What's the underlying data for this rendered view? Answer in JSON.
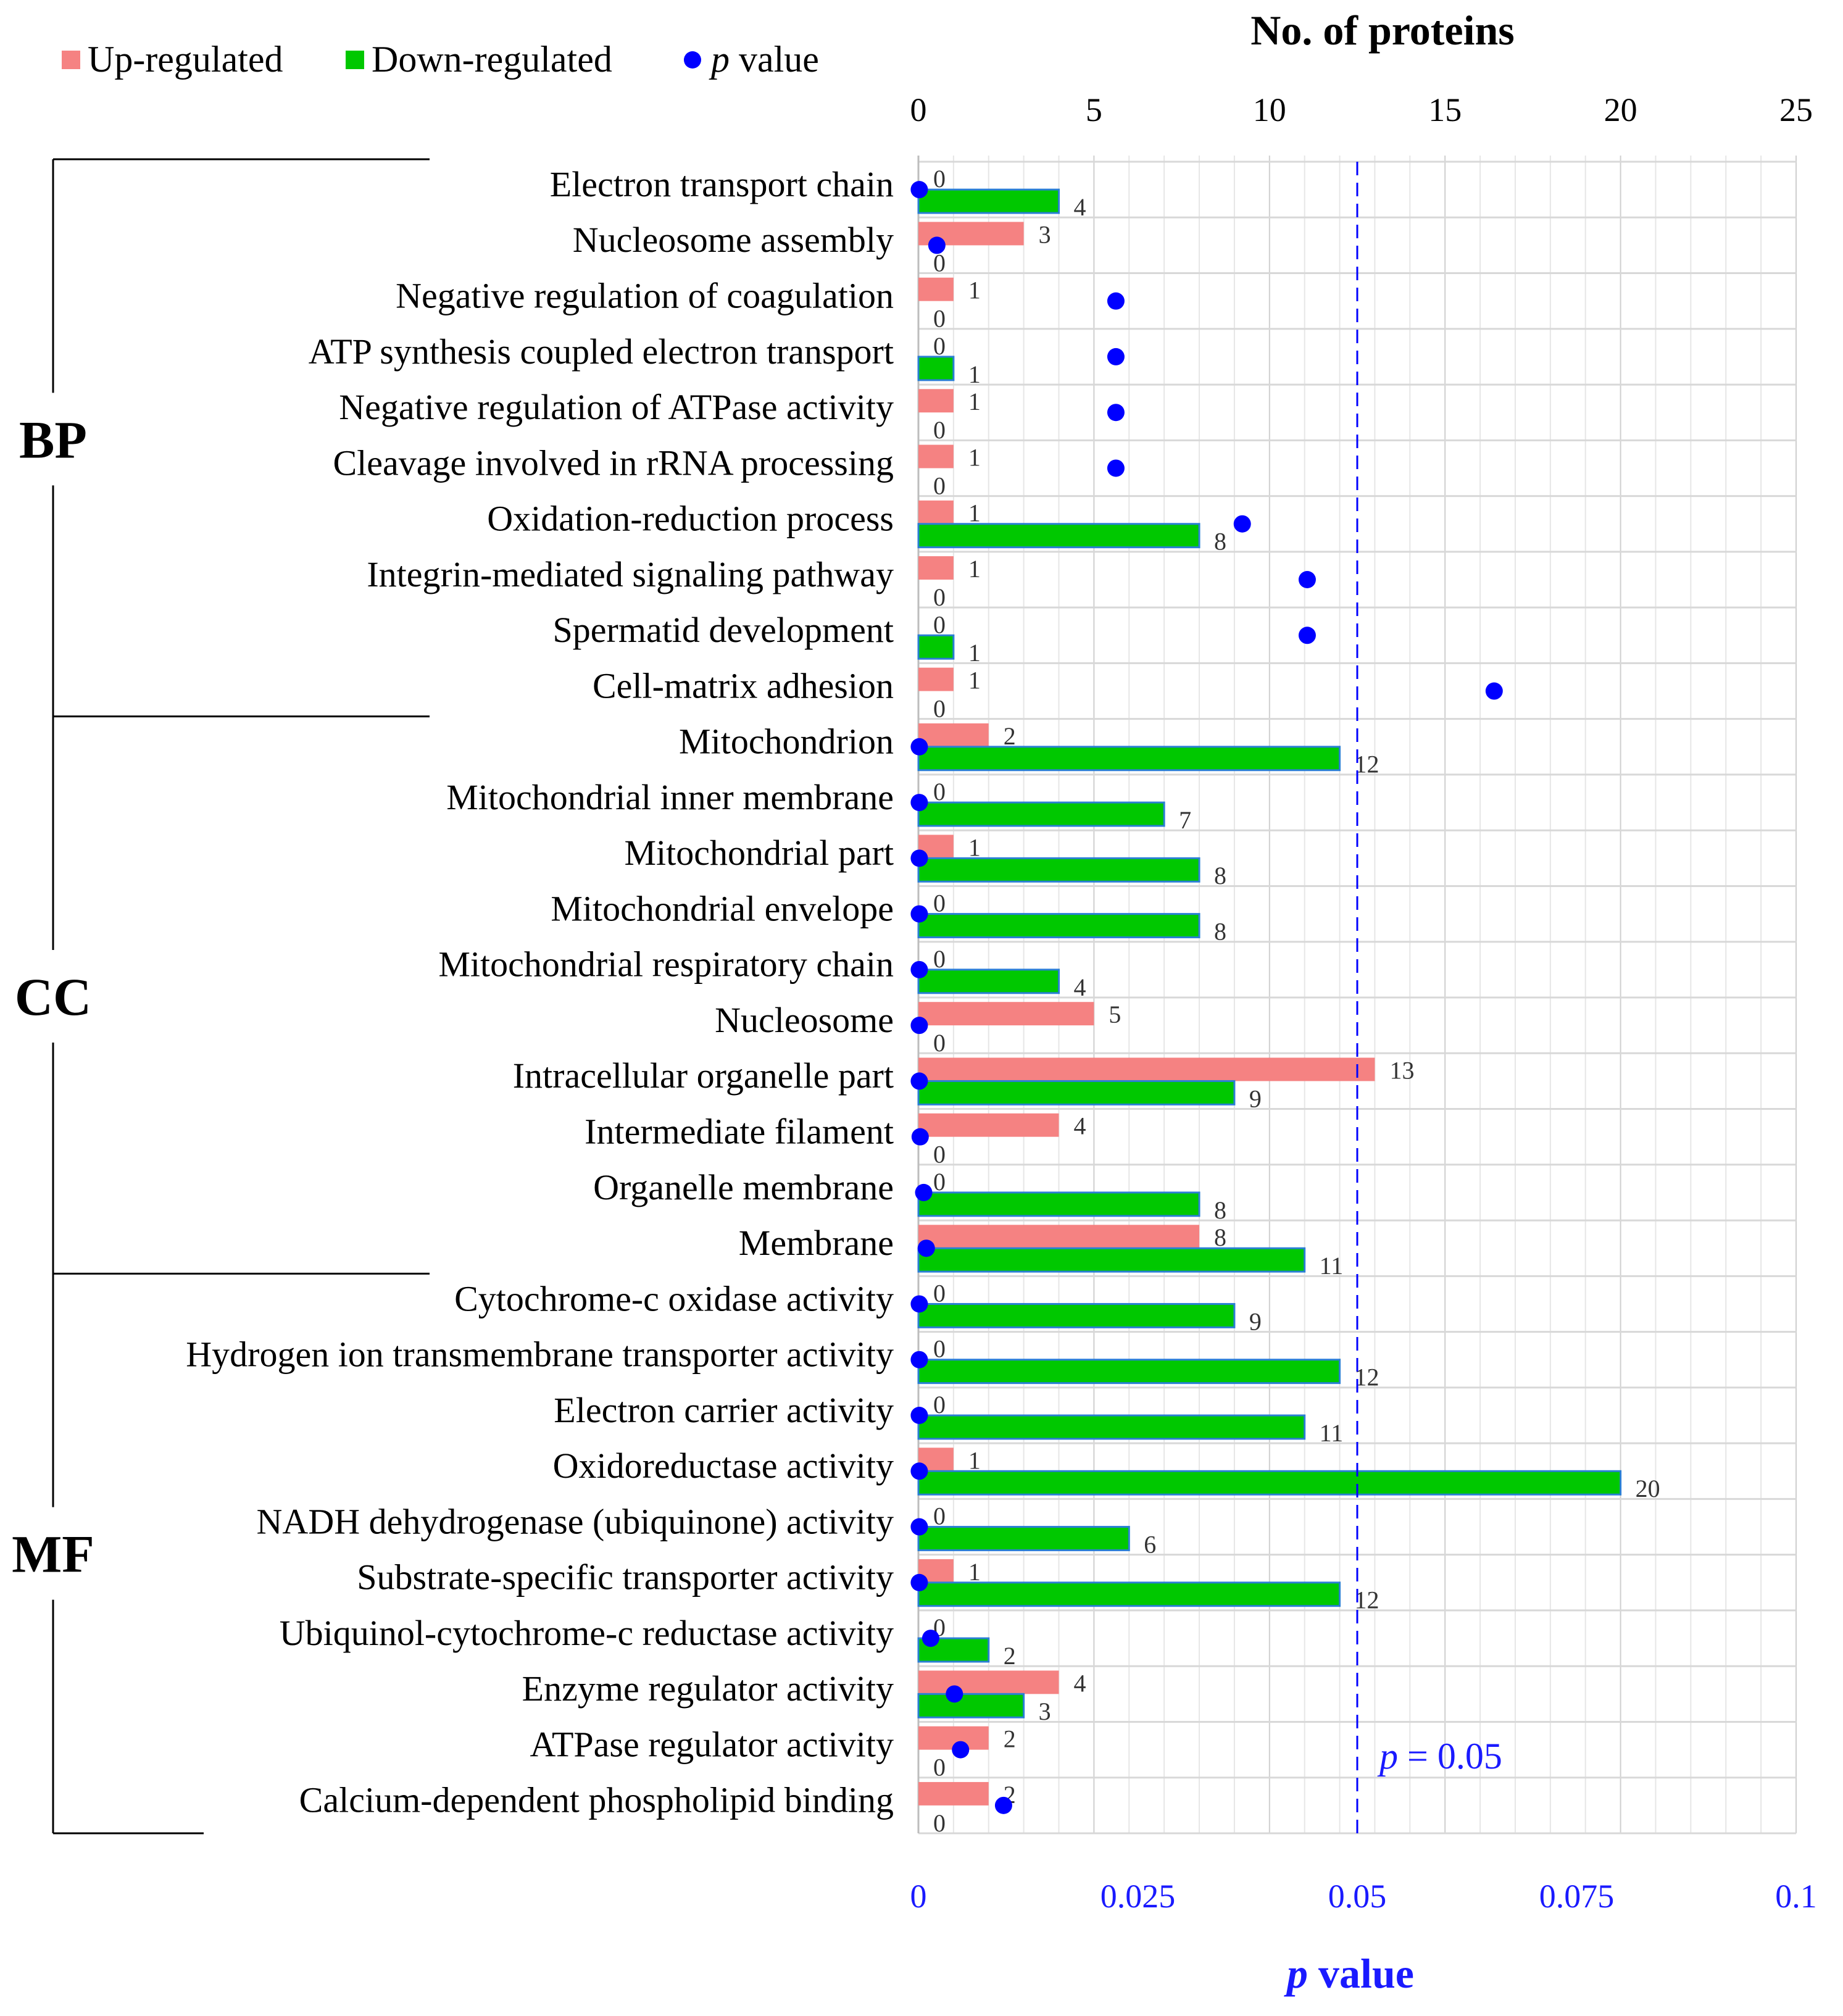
{
  "chart_data": {
    "type": "bar",
    "orientation": "horizontal",
    "top_axis_title": "No. of proteins",
    "top_axis_ticks": [
      "0",
      "5",
      "10",
      "15",
      "20",
      "25"
    ],
    "top_axis_range": [
      0,
      25
    ],
    "bottom_axis_title_italic": "p",
    "bottom_axis_title_rest": " value",
    "bottom_axis_ticks": [
      "0",
      "0.025",
      "0.05",
      "0.075",
      "0.1"
    ],
    "bottom_axis_range": [
      0,
      0.1
    ],
    "threshold": {
      "value": 0.05,
      "label_italic": "p",
      "label_rest": " = 0.05"
    },
    "legend": {
      "up": {
        "label": "Up-regulated",
        "color": "#f58282"
      },
      "down": {
        "label": "Down-regulated",
        "color": "#00c800"
      },
      "p": {
        "label_italic": "p",
        "label_rest": " value",
        "color": "#0000ff"
      }
    },
    "groups": [
      {
        "name": "BP",
        "start": 0,
        "end": 9
      },
      {
        "name": "CC",
        "start": 10,
        "end": 19
      },
      {
        "name": "MF",
        "start": 20,
        "end": 29
      }
    ],
    "categories": [
      "Electron transport chain",
      "Nucleosome assembly",
      "Negative regulation of coagulation",
      "ATP synthesis coupled electron transport",
      "Negative regulation of ATPase activity",
      "Cleavage involved in rRNA processing",
      "Oxidation-reduction process",
      "Integrin-mediated signaling pathway",
      "Spermatid development",
      "Cell-matrix adhesion",
      "Mitochondrion",
      "Mitochondrial inner membrane",
      "Mitochondrial part",
      "Mitochondrial envelope",
      "Mitochondrial respiratory chain",
      "Nucleosome",
      "Intracellular organelle part",
      "Intermediate filament",
      "Organelle membrane",
      "Membrane",
      "Cytochrome-c oxidase activity",
      "Hydrogen ion transmembrane transporter activity",
      "Electron carrier activity",
      "Oxidoreductase activity",
      "NADH dehydrogenase (ubiquinone) activity",
      "Substrate-specific transporter activity",
      "Ubiquinol-cytochrome-c reductase activity",
      "Enzyme regulator activity",
      "ATPase regulator activity",
      "Calcium-dependent phospholipid binding"
    ],
    "series": [
      {
        "name": "Up-regulated",
        "values": [
          0,
          3,
          1,
          0,
          1,
          1,
          1,
          1,
          0,
          1,
          2,
          0,
          1,
          0,
          0,
          5,
          13,
          4,
          0,
          8,
          0,
          0,
          0,
          1,
          0,
          1,
          0,
          4,
          2,
          2
        ]
      },
      {
        "name": "Down-regulated",
        "values": [
          4,
          0,
          0,
          1,
          0,
          0,
          8,
          0,
          1,
          0,
          12,
          7,
          8,
          8,
          4,
          0,
          9,
          0,
          8,
          11,
          9,
          12,
          11,
          20,
          6,
          12,
          2,
          3,
          0,
          0
        ]
      },
      {
        "name": "p value",
        "values": [
          0.0001,
          0.0021,
          0.0225,
          0.0225,
          0.0225,
          0.0225,
          0.0369,
          0.0443,
          0.0443,
          0.0656,
          0.0001,
          0.0001,
          0.0001,
          0.0001,
          0.0001,
          0.0001,
          0.0001,
          0.0002,
          0.0006,
          0.0009,
          0.0001,
          0.0001,
          0.0001,
          0.0001,
          0.0001,
          0.0001,
          0.0014,
          0.0041,
          0.0048,
          0.0097
        ]
      }
    ]
  }
}
